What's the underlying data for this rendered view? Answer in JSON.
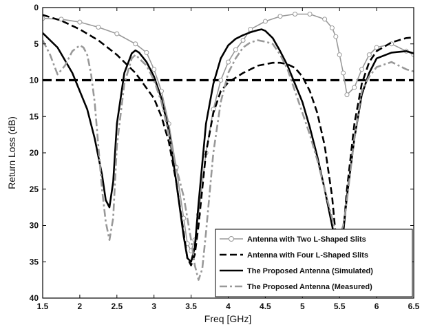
{
  "chart_data": {
    "type": "line",
    "xlabel": "Freq [GHz]",
    "ylabel": "Return Loss (dB)",
    "xlim": [
      1.5,
      6.5
    ],
    "ylim": [
      0,
      40
    ],
    "y_reversed": true,
    "grid": false,
    "legend_position": "bottom-right",
    "x_ticks": [
      "1.5",
      "2",
      "2.5",
      "3",
      "3.5",
      "4",
      "4.5",
      "5",
      "5.5",
      "6",
      "6.5"
    ],
    "y_ticks": [
      "0",
      "5",
      "10",
      "15",
      "20",
      "25",
      "30",
      "35",
      "40"
    ],
    "reference_line": {
      "y": 10,
      "color": "#000000"
    },
    "series": [
      {
        "name": "Antenna with Two L-Shaped Slits",
        "color": "#999999",
        "style": "line-circle",
        "x": [
          1.5,
          1.75,
          2.0,
          2.25,
          2.5,
          2.75,
          2.9,
          3.0,
          3.1,
          3.2,
          3.3,
          3.4,
          3.45,
          3.5,
          3.55,
          3.6,
          3.7,
          3.8,
          3.9,
          4.0,
          4.1,
          4.2,
          4.3,
          4.5,
          4.7,
          4.9,
          5.1,
          5.3,
          5.4,
          5.45,
          5.5,
          5.55,
          5.6,
          5.7,
          5.8,
          5.9,
          6.0,
          6.2,
          6.4,
          6.5
        ],
        "y": [
          1.5,
          1.6,
          2.0,
          2.7,
          3.6,
          5.0,
          6.2,
          8.5,
          11.5,
          16.0,
          22.0,
          29.0,
          32.5,
          33.5,
          32.0,
          28.5,
          20.0,
          14.0,
          10.0,
          7.5,
          5.8,
          4.5,
          3.0,
          1.9,
          1.2,
          0.9,
          0.9,
          1.6,
          2.8,
          4.0,
          6.5,
          9.0,
          12.0,
          11.0,
          8.5,
          6.5,
          5.5,
          5.0,
          6.0,
          6.5
        ]
      },
      {
        "name": "Antenna with Four L-Shaped Slits",
        "color": "#000000",
        "style": "dashed",
        "x": [
          1.5,
          1.75,
          2.0,
          2.25,
          2.5,
          2.75,
          3.0,
          3.1,
          3.2,
          3.3,
          3.4,
          3.45,
          3.5,
          3.55,
          3.6,
          3.7,
          3.8,
          3.9,
          4.0,
          4.2,
          4.4,
          4.6,
          4.7,
          4.8,
          4.9,
          5.0,
          5.1,
          5.2,
          5.3,
          5.4,
          5.45,
          5.5,
          5.55,
          5.6,
          5.7,
          5.8,
          5.9,
          6.0,
          6.2,
          6.4,
          6.5
        ],
        "y": [
          1.0,
          1.8,
          3.0,
          4.5,
          6.5,
          9.0,
          12.5,
          15.0,
          18.5,
          24.0,
          31.0,
          34.5,
          35.5,
          34.0,
          30.0,
          20.0,
          14.5,
          11.5,
          10.3,
          9.0,
          8.0,
          7.6,
          7.6,
          7.8,
          8.3,
          9.5,
          11.5,
          14.5,
          19.0,
          26.0,
          31.5,
          33.5,
          31.0,
          25.0,
          16.0,
          10.5,
          7.5,
          6.0,
          4.8,
          4.2,
          4.1
        ]
      },
      {
        "name": "The Proposed Antenna (Simulated)",
        "color": "#000000",
        "style": "solid",
        "x": [
          1.5,
          1.7,
          1.9,
          2.1,
          2.2,
          2.3,
          2.35,
          2.4,
          2.45,
          2.5,
          2.6,
          2.7,
          2.75,
          2.8,
          2.9,
          3.0,
          3.1,
          3.2,
          3.3,
          3.4,
          3.45,
          3.5,
          3.55,
          3.6,
          3.7,
          3.8,
          3.9,
          4.0,
          4.1,
          4.2,
          4.3,
          4.4,
          4.45,
          4.5,
          4.6,
          4.7,
          4.8,
          4.9,
          5.0,
          5.1,
          5.2,
          5.3,
          5.4,
          5.45,
          5.5,
          5.55,
          5.6,
          5.7,
          5.8,
          5.9,
          6.0,
          6.2,
          6.4,
          6.5
        ],
        "y": [
          3.5,
          5.5,
          9.0,
          14.0,
          18.0,
          23.0,
          26.5,
          27.5,
          24.0,
          16.0,
          9.0,
          6.3,
          5.9,
          6.2,
          7.5,
          9.5,
          12.5,
          17.0,
          24.0,
          31.5,
          34.5,
          35.0,
          33.0,
          27.0,
          16.0,
          10.5,
          7.0,
          5.2,
          4.3,
          3.8,
          3.4,
          3.1,
          3.0,
          3.2,
          4.2,
          6.0,
          8.0,
          10.5,
          13.0,
          16.5,
          20.5,
          25.0,
          30.0,
          32.5,
          33.0,
          31.0,
          26.0,
          18.0,
          12.0,
          9.0,
          7.0,
          6.2,
          6.0,
          6.3
        ]
      },
      {
        "name": "The Proposed Antenna (Measured)",
        "color": "#999999",
        "style": "dashdot",
        "x": [
          1.5,
          1.6,
          1.7,
          1.8,
          1.9,
          2.0,
          2.05,
          2.1,
          2.15,
          2.2,
          2.25,
          2.3,
          2.35,
          2.4,
          2.45,
          2.5,
          2.6,
          2.7,
          2.75,
          2.8,
          2.9,
          3.0,
          3.1,
          3.2,
          3.3,
          3.4,
          3.5,
          3.55,
          3.6,
          3.65,
          3.7,
          3.8,
          3.9,
          4.0,
          4.1,
          4.2,
          4.3,
          4.4,
          4.5,
          4.6,
          4.7,
          4.8,
          4.9,
          5.0,
          5.1,
          5.2,
          5.3,
          5.4,
          5.45,
          5.5,
          5.55,
          5.6,
          5.7,
          5.8,
          5.9,
          6.0,
          6.2,
          6.4,
          6.5
        ],
        "y": [
          4.5,
          6.5,
          9.2,
          8.0,
          6.0,
          5.2,
          5.5,
          6.5,
          9.0,
          13.0,
          19.0,
          25.0,
          29.5,
          32.0,
          29.0,
          19.0,
          10.5,
          7.0,
          6.5,
          7.0,
          8.0,
          10.0,
          13.0,
          17.5,
          22.0,
          26.0,
          32.0,
          35.5,
          37.5,
          36.0,
          31.0,
          20.0,
          13.0,
          9.0,
          7.0,
          5.5,
          4.8,
          4.5,
          4.7,
          5.0,
          6.5,
          8.5,
          11.5,
          14.5,
          17.5,
          21.0,
          25.0,
          29.0,
          31.0,
          31.5,
          30.0,
          26.5,
          18.0,
          11.5,
          9.5,
          8.2,
          7.5,
          8.5,
          8.8
        ]
      }
    ]
  }
}
